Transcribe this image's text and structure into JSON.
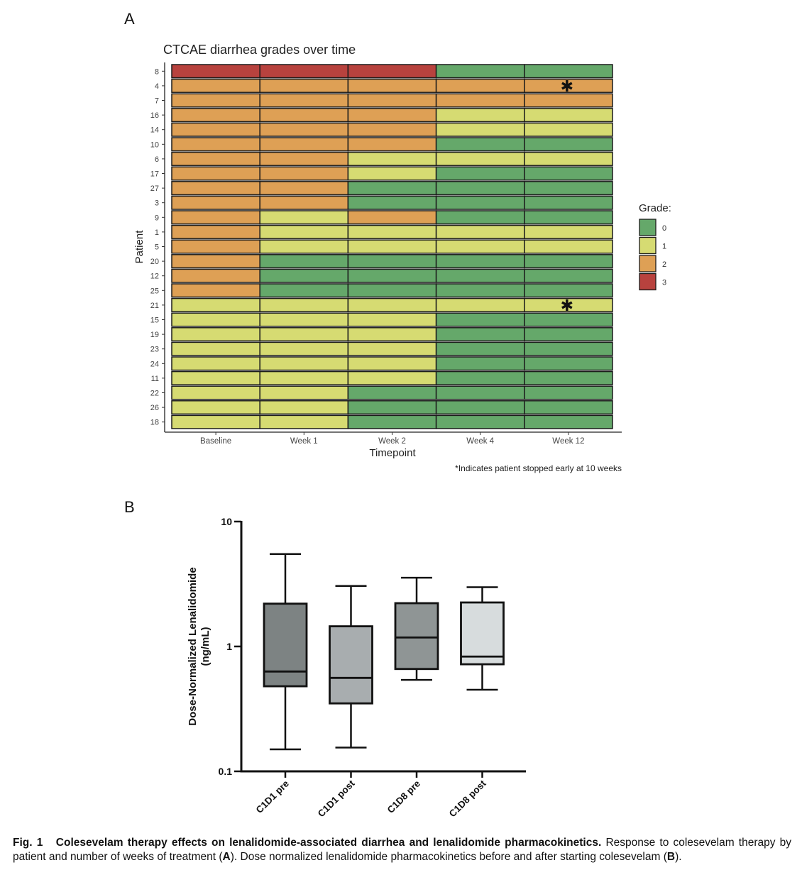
{
  "panel_a": {
    "label": "A",
    "note": "*Indicates patient stopped early at 10 weeks"
  },
  "panel_b": {
    "label": "B"
  },
  "colors": {
    "grade_0": "#65a86a",
    "grade_1": "#d6db72",
    "grade_2": "#dea055",
    "grade_3": "#b8423e",
    "box_c1d1_pre": "#7d8383",
    "box_c1d1_post": "#a8adaf",
    "box_c1d8_pre": "#8f9595",
    "box_c1d8_post": "#d7dcdd"
  },
  "chart_data": [
    {
      "type": "heatmap",
      "title": "CTCAE diarrhea grades over time",
      "xlabel": "Timepoint",
      "ylabel": "Patient",
      "x": [
        "Baseline",
        "Week 1",
        "Week 2",
        "Week 4",
        "Week 12"
      ],
      "y": [
        "8",
        "4",
        "7",
        "16",
        "14",
        "10",
        "6",
        "17",
        "27",
        "3",
        "9",
        "1",
        "5",
        "20",
        "12",
        "25",
        "21",
        "15",
        "19",
        "23",
        "24",
        "11",
        "22",
        "26",
        "18"
      ],
      "values": [
        [
          3,
          3,
          3,
          0,
          0
        ],
        [
          2,
          2,
          2,
          2,
          2
        ],
        [
          2,
          2,
          2,
          2,
          2
        ],
        [
          2,
          2,
          2,
          1,
          1
        ],
        [
          2,
          2,
          2,
          1,
          1
        ],
        [
          2,
          2,
          2,
          0,
          0
        ],
        [
          2,
          2,
          1,
          1,
          1
        ],
        [
          2,
          2,
          1,
          0,
          0
        ],
        [
          2,
          2,
          0,
          0,
          0
        ],
        [
          2,
          2,
          0,
          0,
          0
        ],
        [
          2,
          1,
          2,
          0,
          0
        ],
        [
          2,
          1,
          1,
          1,
          1
        ],
        [
          2,
          1,
          1,
          1,
          1
        ],
        [
          2,
          0,
          0,
          0,
          0
        ],
        [
          2,
          0,
          0,
          0,
          0
        ],
        [
          2,
          0,
          0,
          0,
          0
        ],
        [
          1,
          1,
          1,
          1,
          1
        ],
        [
          1,
          1,
          1,
          0,
          0
        ],
        [
          1,
          1,
          1,
          0,
          0
        ],
        [
          1,
          1,
          1,
          0,
          0
        ],
        [
          1,
          1,
          1,
          0,
          0
        ],
        [
          1,
          1,
          1,
          0,
          0
        ],
        [
          1,
          1,
          0,
          0,
          0
        ],
        [
          1,
          1,
          0,
          0,
          0
        ],
        [
          1,
          1,
          0,
          0,
          0
        ]
      ],
      "annotations": [
        {
          "patient": "4",
          "timepoint": "Week 12",
          "text": "✱"
        },
        {
          "patient": "21",
          "timepoint": "Week 12",
          "text": "✱"
        }
      ],
      "legend": {
        "title": "Grade:",
        "entries": [
          "0",
          "1",
          "2",
          "3"
        ],
        "position": "right"
      }
    },
    {
      "type": "box",
      "ylabel": "Dose-Normalized Lenalidomide (ng/mL)",
      "ylabel_lines": [
        "Dose-Normalized Lenalidomide",
        "(ng/mL)"
      ],
      "yscale": "log",
      "ylim": [
        0.1,
        10
      ],
      "yticks": [
        "0.1",
        "1",
        "10"
      ],
      "categories": [
        "C1D1 pre",
        "C1D1 post",
        "C1D8 pre",
        "C1D8 post"
      ],
      "boxes": [
        {
          "name": "C1D1 pre",
          "min": 0.15,
          "q1": 0.48,
          "median": 0.63,
          "q3": 2.2,
          "max": 5.5
        },
        {
          "name": "C1D1 post",
          "min": 0.155,
          "q1": 0.35,
          "median": 0.56,
          "q3": 1.45,
          "max": 3.05
        },
        {
          "name": "C1D8 pre",
          "min": 0.54,
          "q1": 0.66,
          "median": 1.18,
          "q3": 2.22,
          "max": 3.55
        },
        {
          "name": "C1D8 post",
          "min": 0.45,
          "q1": 0.72,
          "median": 0.83,
          "q3": 2.25,
          "max": 2.98
        }
      ]
    }
  ],
  "caption": {
    "figure_label": "Fig. 1",
    "title": "Colesevelam therapy effects on lenalidomide-associated diarrhea and lenalidomide pharmacokinetics.",
    "text_1": " Response to colesevelam therapy by patient and number of weeks of treatment (",
    "ref_a": "A",
    "text_2": "). Dose normalized lenalidomide pharmacokinetics before and after starting colesevelam (",
    "ref_b": "B",
    "text_3": ")."
  }
}
